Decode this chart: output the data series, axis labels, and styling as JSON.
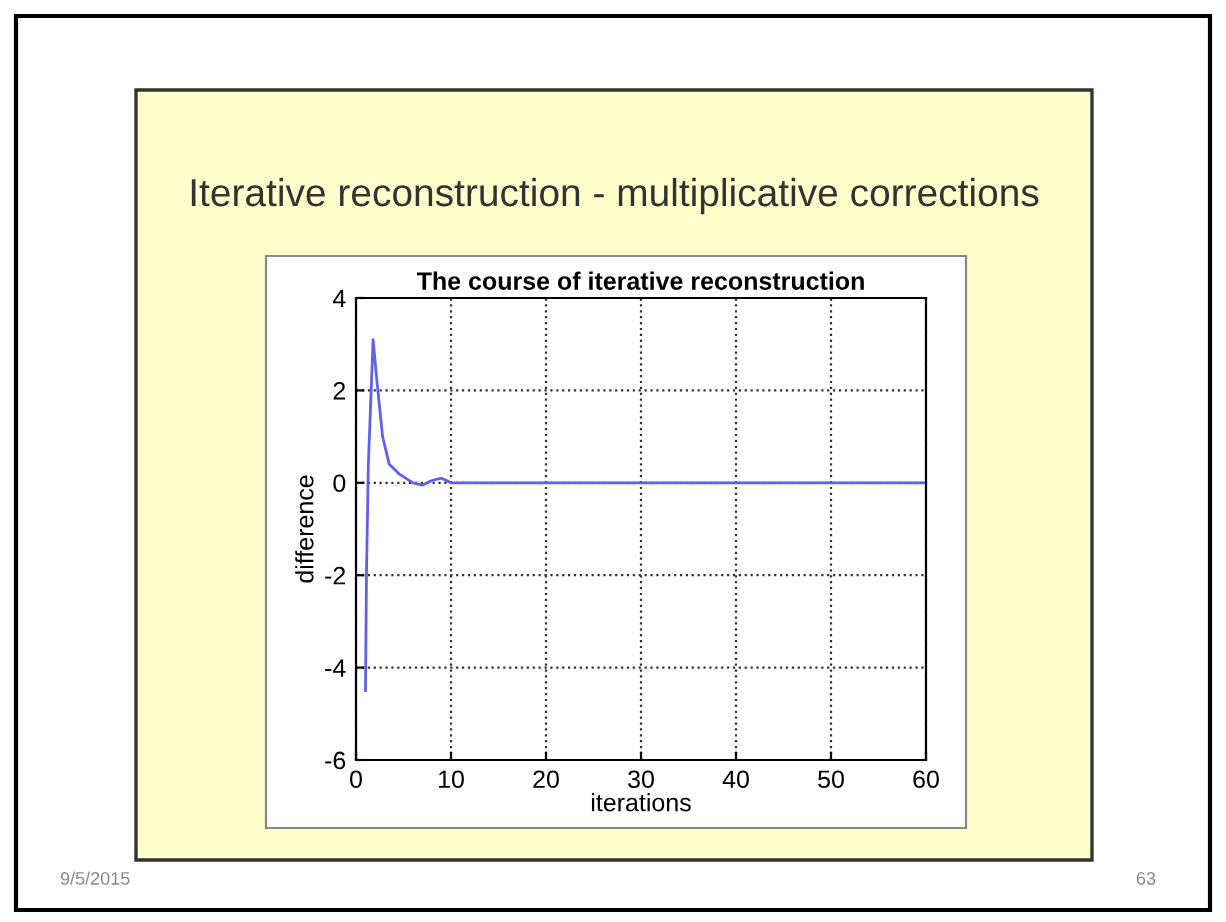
{
  "chart_data": {
    "type": "line",
    "title": "The course of iterative reconstruction",
    "xlabel": "iterations",
    "ylabel": "difference",
    "annotations": [
      "Iterative reconstruction - multiplicative corrections",
      "9/5/2015",
      "63"
    ],
    "x": [
      1,
      1.1,
      1.3,
      1.8,
      2.2,
      2.8,
      3.5,
      4.5,
      6,
      7,
      8,
      9,
      10,
      20,
      30,
      40,
      50,
      60
    ],
    "series": [
      {
        "color": "#6060f0",
        "values": [
          -4.5,
          -2,
          0.4,
          3.1,
          2.2,
          1.0,
          0.4,
          0.2,
          0,
          -0.05,
          0.05,
          0.1,
          0,
          0,
          0,
          0,
          0,
          0
        ]
      }
    ],
    "xlim": [
      0,
      60
    ],
    "xticks": [
      0,
      10,
      20,
      30,
      40,
      50,
      60
    ],
    "ylim": [
      -6,
      4
    ],
    "yticks": [
      -6,
      -4,
      -2,
      0,
      2,
      4
    ],
    "grid": true,
    "line_style": "solid",
    "marker": "none"
  }
}
